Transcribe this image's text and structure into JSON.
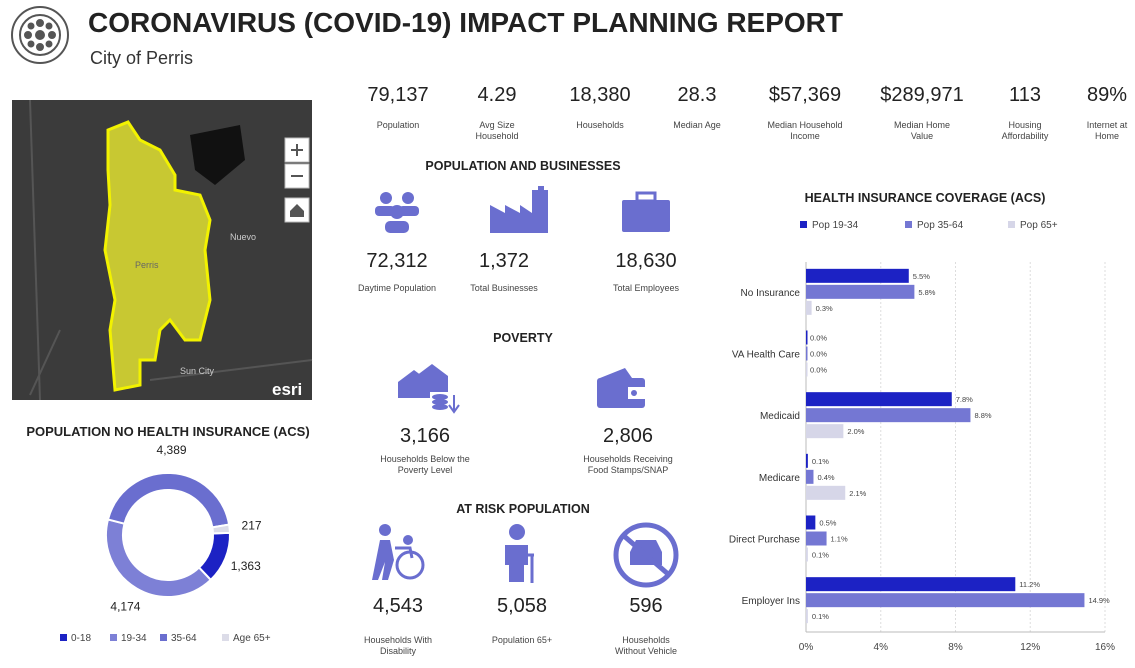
{
  "header": {
    "title": "CORONAVIRUS (COVID-19) IMPACT PLANNING REPORT",
    "subtitle": "City of Perris"
  },
  "map": {
    "labels": [
      "Nuevo",
      "Perris",
      "Sun City"
    ],
    "logo": "esri"
  },
  "stats": [
    {
      "value": "79,137",
      "label": "Population"
    },
    {
      "value": "4.29",
      "label": "Avg Size Household"
    },
    {
      "value": "18,380",
      "label": "Households"
    },
    {
      "value": "28.3",
      "label": "Median Age"
    },
    {
      "value": "$57,369",
      "label": "Median Household Income"
    },
    {
      "value": "$289,971",
      "label": "Median Home Value"
    },
    {
      "value": "113",
      "label": "Housing Affordability"
    },
    {
      "value": "89%",
      "label": "Internet at Home"
    }
  ],
  "sections": [
    {
      "title": "POPULATION AND BUSINESSES",
      "items": [
        {
          "value": "72,312",
          "label": "Daytime Population"
        },
        {
          "value": "1,372",
          "label": "Total Businesses"
        },
        {
          "value": "18,630",
          "label": "Total Employees"
        }
      ]
    },
    {
      "title": "POVERTY",
      "items": [
        {
          "value": "3,166",
          "label": "Households Below the Poverty Level"
        },
        {
          "value": "2,806",
          "label": "Households Receiving Food Stamps/SNAP"
        }
      ]
    },
    {
      "title": "AT RISK POPULATION",
      "items": [
        {
          "value": "4,543",
          "label": "Households With Disability"
        },
        {
          "value": "5,058",
          "label": "Population 65+"
        },
        {
          "value": "596",
          "label": "Households Without Vehicle"
        }
      ]
    }
  ],
  "chart_data": [
    {
      "type": "donut",
      "title": "POPULATION NO HEALTH INSURANCE (ACS)",
      "categories": [
        "0-18",
        "19-34",
        "35-64",
        "Age 65+"
      ],
      "values": [
        1363,
        4174,
        4389,
        217
      ],
      "value_labels": [
        "1,363",
        "4,174",
        "4,389",
        "217"
      ],
      "colors": [
        "#1c22c4",
        "#7d80d6",
        "#6a6ecf",
        "#dcdce8"
      ]
    },
    {
      "type": "hbar",
      "title": "HEALTH INSURANCE COVERAGE (ACS)",
      "categories": [
        "No Insurance",
        "VA Health Care",
        "Medicaid",
        "Medicare",
        "Direct Purchase",
        "Employer Ins"
      ],
      "series": [
        {
          "name": "Pop 19-34",
          "color": "#1c22c4",
          "values": [
            5.5,
            0,
            7.8,
            0.1,
            0.5,
            11.2
          ],
          "value_labels": [
            "5.5%",
            "0.0%",
            "7.8%",
            "0.1%",
            "0.5%",
            "11.2%"
          ]
        },
        {
          "name": "Pop 35-64",
          "color": "#7477d3",
          "values": [
            5.8,
            0,
            8.8,
            0.4,
            1.1,
            14.9
          ],
          "value_labels": [
            "5.8%",
            "0.0%",
            "8.8%",
            "0.4%",
            "1.1%",
            "14.9%"
          ]
        },
        {
          "name": "Pop 65+",
          "color": "#d6d6e8",
          "values": [
            0.3,
            0,
            2.0,
            2.1,
            0.1,
            0.1
          ],
          "value_labels": [
            "0.3%",
            "0.0%",
            "2.0%",
            "2.1%",
            "0.1%",
            "0.1%"
          ]
        }
      ],
      "xlim": [
        0,
        16
      ],
      "xticks": [
        {
          "value": 0,
          "label": "0%"
        },
        {
          "value": 4,
          "label": "4%"
        },
        {
          "value": 8,
          "label": "8%"
        },
        {
          "value": 12,
          "label": "12%"
        },
        {
          "value": 16,
          "label": "16%"
        }
      ],
      "grid": true
    }
  ]
}
